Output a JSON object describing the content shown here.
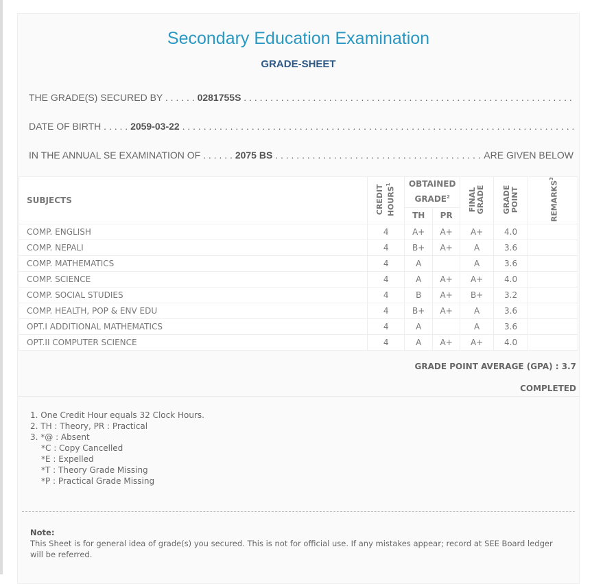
{
  "header": {
    "title": "Secondary Education Examination",
    "subtitle": "GRADE-SHEET"
  },
  "info": {
    "secured_label": "THE GRADE(S) SECURED BY",
    "symbol_no": "0281755S",
    "dob_label": "DATE OF BIRTH",
    "dob": "2059-03-22",
    "exam_label": "IN THE ANNUAL SE EXAMINATION OF",
    "exam_year": "2075 BS",
    "exam_suffix": "ARE GIVEN BELOW"
  },
  "table": {
    "headers": {
      "subjects": "SUBJECTS",
      "credit": "CREDIT HOURS",
      "credit_sup": "1",
      "obtained": "OBTAINED GRADE",
      "obtained_sup": "2",
      "th": "TH",
      "pr": "PR",
      "final": "FINAL GRADE",
      "gp": "GRADE POINT",
      "remarks": "REMARKS",
      "remarks_sup": "3"
    },
    "rows": [
      {
        "subject": "COMP. ENGLISH",
        "credit": "4",
        "th": "A+",
        "pr": "A+",
        "final": "A+",
        "gp": "4.0",
        "remarks": ""
      },
      {
        "subject": "COMP. NEPALI",
        "credit": "4",
        "th": "B+",
        "pr": "A+",
        "final": "A",
        "gp": "3.6",
        "remarks": ""
      },
      {
        "subject": "COMP. MATHEMATICS",
        "credit": "4",
        "th": "A",
        "pr": "",
        "final": "A",
        "gp": "3.6",
        "remarks": ""
      },
      {
        "subject": "COMP. SCIENCE",
        "credit": "4",
        "th": "A",
        "pr": "A+",
        "final": "A+",
        "gp": "4.0",
        "remarks": ""
      },
      {
        "subject": "COMP. SOCIAL STUDIES",
        "credit": "4",
        "th": "B",
        "pr": "A+",
        "final": "B+",
        "gp": "3.2",
        "remarks": ""
      },
      {
        "subject": "COMP. HEALTH, POP & ENV EDU",
        "credit": "4",
        "th": "B+",
        "pr": "A+",
        "final": "A",
        "gp": "3.6",
        "remarks": ""
      },
      {
        "subject": "OPT.I ADDITIONAL MATHEMATICS",
        "credit": "4",
        "th": "A",
        "pr": "",
        "final": "A",
        "gp": "3.6",
        "remarks": ""
      },
      {
        "subject": "OPT.II COMPUTER SCIENCE",
        "credit": "4",
        "th": "A",
        "pr": "A+",
        "final": "A+",
        "gp": "4.0",
        "remarks": ""
      }
    ]
  },
  "summary": {
    "gpa": "GRADE POINT AVERAGE (GPA) : 3.7",
    "status": "COMPLETED"
  },
  "footnotes": [
    "1. One Credit Hour equals 32 Clock Hours.",
    "2. TH : Theory, PR : Practical",
    "3. *@ : Absent",
    "*C : Copy Cancelled",
    "*E : Expelled",
    "*T : Theory Grade Missing",
    "*P : Practical Grade Missing"
  ],
  "note": {
    "label": "Note:",
    "text": "This Sheet is for general idea of grade(s) you secured. This is not for official use. If any mistakes appear; record at SEE Board ledger will be referred."
  }
}
